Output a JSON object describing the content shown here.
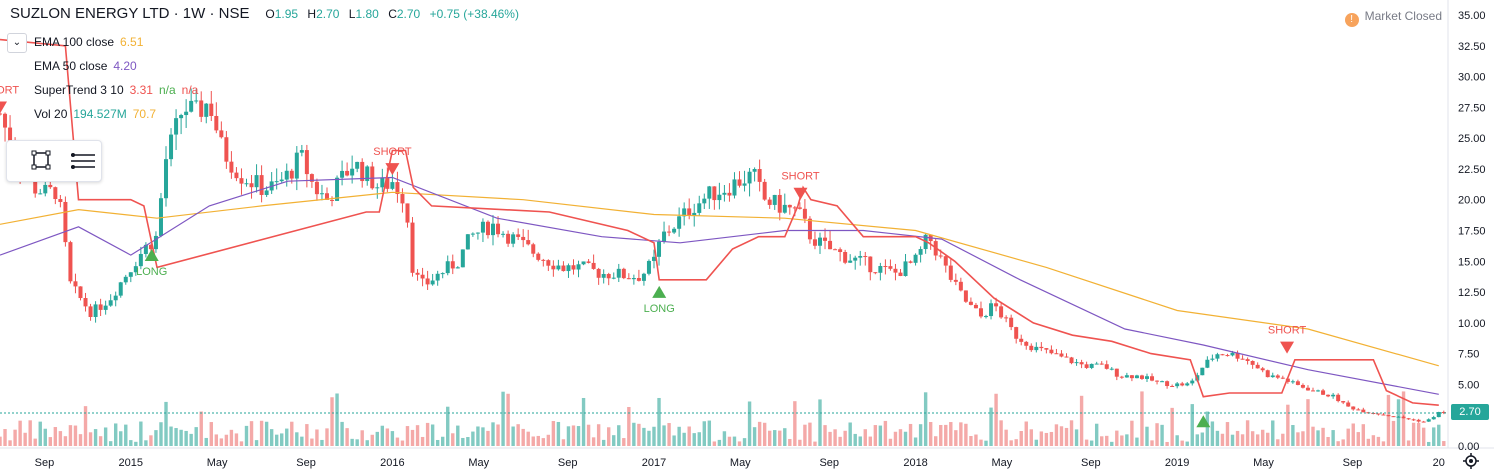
{
  "header": {
    "symbol": "SUZLON ENERGY LTD · 1W · NSE",
    "open_label": "O",
    "open": "1.95",
    "high_label": "H",
    "high": "2.70",
    "low_label": "L",
    "low": "1.80",
    "close_label": "C",
    "close": "2.70",
    "change": "+0.75 (+38.46%)"
  },
  "legend": {
    "collapse_icon": "chevron-down-icon",
    "ema100_label": "EMA 100 close",
    "ema100_value": "6.51",
    "ema50_label": "EMA 50 close",
    "ema50_value": "4.20",
    "supertrend_label": "SuperTrend 3 10",
    "supertrend_value": "3.31",
    "supertrend_na1": "n/a",
    "supertrend_na2": "n/a",
    "volume_label": "Vol 20",
    "volume_value": "194.527M",
    "volume_ma": "70.7"
  },
  "toolbar": {
    "tools": [
      "select-rectangle-icon",
      "hamburger-menu-icon"
    ]
  },
  "market_status": {
    "icon": "info-icon",
    "label": "Market Closed"
  },
  "last_price_tag": "2.70",
  "colors": {
    "up": "#26a69a",
    "down": "#ef5350",
    "ema100": "#f2b134",
    "ema50": "#7e57c2",
    "supertrend_down": "#ef5350",
    "supertrend_up": "#4caf50",
    "signal_long": "#4caf50",
    "signal_short": "#ef5350",
    "vol_up": "#82cac2",
    "vol_down": "#f4a9a8"
  },
  "chart_data": {
    "type": "candlestick",
    "title": "SUZLON ENERGY LTD · 1W · NSE",
    "y_ticks": [
      "0.00",
      "2.50",
      "5.00",
      "7.50",
      "10.00",
      "12.50",
      "15.00",
      "17.50",
      "20.00",
      "22.50",
      "25.00",
      "27.50",
      "30.00",
      "32.50",
      "35.00"
    ],
    "ylim": [
      0,
      35
    ],
    "x_ticks": [
      "Sep",
      "2015",
      "May",
      "Sep",
      "2016",
      "May",
      "Sep",
      "2017",
      "May",
      "Sep",
      "2018",
      "May",
      "Sep",
      "2019",
      "May",
      "Sep",
      "20"
    ],
    "x_tick_times": [
      2014.67,
      2015.0,
      2015.33,
      2015.67,
      2016.0,
      2016.33,
      2016.67,
      2017.0,
      2017.33,
      2017.67,
      2018.0,
      2018.33,
      2018.67,
      2019.0,
      2019.33,
      2019.67,
      2020.0
    ],
    "xlim": [
      2014.5,
      2020.02
    ],
    "price_series": {
      "name": "price",
      "x": [
        2014.5,
        2014.55,
        2014.6,
        2014.63,
        2014.68,
        2014.72,
        2014.77,
        2014.85,
        2014.92,
        2015.0,
        2015.05,
        2015.1,
        2015.13,
        2015.2,
        2015.25,
        2015.3,
        2015.35,
        2015.42,
        2015.5,
        2015.55,
        2015.6,
        2015.65,
        2015.7,
        2015.75,
        2015.8,
        2015.85,
        2015.9,
        2015.95,
        2016.0,
        2016.05,
        2016.08,
        2016.12,
        2016.18,
        2016.25,
        2016.3,
        2016.38,
        2016.45,
        2016.52,
        2016.6,
        2016.65,
        2016.72,
        2016.8,
        2016.85,
        2016.9,
        2016.95,
        2017.0,
        2017.03,
        2017.08,
        2017.15,
        2017.22,
        2017.28,
        2017.32,
        2017.38,
        2017.42,
        2017.48,
        2017.55,
        2017.6,
        2017.63,
        2017.67,
        2017.72,
        2017.78,
        2017.85,
        2017.92,
        2018.0,
        2018.05,
        2018.1,
        2018.15,
        2018.2,
        2018.25,
        2018.3,
        2018.38,
        2018.45,
        2018.52,
        2018.58,
        2018.65,
        2018.72,
        2018.78,
        2018.85,
        2018.92,
        2018.98,
        2019.05,
        2019.1,
        2019.15,
        2019.2,
        2019.25,
        2019.3,
        2019.35,
        2019.4,
        2019.45,
        2019.52,
        2019.6,
        2019.65,
        2019.72,
        2019.8,
        2019.88,
        2019.95,
        2020.0
      ],
      "y": [
        27,
        24,
        22,
        21,
        20.5,
        20.8,
        13,
        10.8,
        12,
        14.5,
        16,
        17,
        23,
        27.5,
        27,
        28,
        24,
        22,
        21,
        21,
        22,
        23.5,
        21,
        20,
        21.5,
        23,
        22,
        21,
        21.5,
        20,
        14,
        13,
        14,
        15,
        17,
        18,
        17,
        16,
        15,
        14.5,
        14.5,
        14,
        14,
        13.8,
        13.8,
        15,
        17,
        18,
        19.5,
        20.5,
        21,
        21.5,
        22,
        20,
        19.5,
        19,
        17,
        16.5,
        16,
        15.5,
        15,
        14.5,
        14,
        15,
        17,
        15,
        13,
        11.5,
        10.5,
        11.5,
        9,
        8,
        7.5,
        7,
        6.5,
        6.5,
        5.7,
        5.7,
        5.2,
        5.0,
        5.0,
        6.5,
        7.5,
        7.5,
        7.2,
        6.5,
        5.7,
        5.5,
        5.0,
        4.5,
        4.0,
        3.2,
        2.8,
        2.5,
        2.2,
        1.95,
        2.7
      ]
    },
    "series": [
      {
        "name": "EMA 100 close",
        "values_x": [
          2014.5,
          2014.8,
          2015.1,
          2015.5,
          2016.0,
          2016.5,
          2017.0,
          2017.5,
          2018.0,
          2018.5,
          2019.0,
          2019.5,
          2020.0
        ],
        "values": [
          18,
          19.2,
          18.5,
          19.5,
          20.6,
          20.0,
          18.8,
          18.5,
          17.5,
          14.5,
          11.0,
          9.5,
          6.51
        ]
      },
      {
        "name": "EMA 50 close",
        "values_x": [
          2014.5,
          2014.8,
          2015.0,
          2015.3,
          2015.6,
          2016.0,
          2016.4,
          2016.8,
          2017.1,
          2017.5,
          2017.8,
          2018.1,
          2018.4,
          2018.8,
          2019.1,
          2019.5,
          2020.0
        ],
        "values": [
          15.5,
          17.8,
          15.5,
          19.5,
          21.5,
          21.8,
          18.5,
          17.0,
          16.5,
          17.5,
          17.5,
          16.8,
          13.5,
          9.5,
          8.2,
          6.2,
          4.2
        ]
      },
      {
        "name": "SuperTrend 3 10",
        "values_x": [
          2014.5,
          2014.75,
          2014.8,
          2015.0,
          2015.05,
          2015.1,
          2015.9,
          2015.95,
          2016.0,
          2016.05,
          2016.08,
          2016.15,
          2016.6,
          2016.9,
          2017.0,
          2017.02,
          2017.1,
          2017.2,
          2017.3,
          2017.4,
          2017.45,
          2017.5,
          2017.55,
          2017.57,
          2017.6,
          2017.7,
          2017.8,
          2017.9,
          2018.0,
          2018.05,
          2018.15,
          2018.3,
          2018.45,
          2018.6,
          2018.75,
          2018.9,
          2019.05,
          2019.1,
          2019.2,
          2019.4,
          2019.45,
          2019.6,
          2019.75,
          2019.8,
          2019.9,
          2020.0
        ],
        "values": [
          33,
          32.5,
          20,
          20,
          19.5,
          14.5,
          19,
          19,
          24,
          24,
          21,
          19.5,
          19,
          17.5,
          16.5,
          13.5,
          13.5,
          13.5,
          16,
          17,
          17,
          17,
          19.5,
          21,
          20,
          19.5,
          17,
          17,
          17,
          16.5,
          15,
          12,
          10,
          9,
          8.5,
          7.5,
          7.0,
          4.0,
          4.3,
          4.3,
          7.0,
          7.0,
          7.0,
          4.5,
          3.5,
          3.31
        ]
      }
    ],
    "volume": {
      "name": "Vol 20",
      "last": "194.527M",
      "ma": "70.7"
    },
    "signals": [
      {
        "label": "SHORT",
        "x": 2014.5,
        "y": 27
      },
      {
        "label": "LONG",
        "x": 2015.08,
        "y": 16
      },
      {
        "label": "SHORT",
        "x": 2016.0,
        "y": 22
      },
      {
        "label": "LONG",
        "x": 2017.02,
        "y": 13
      },
      {
        "label": "SHORT",
        "x": 2017.56,
        "y": 20
      },
      {
        "label": "",
        "x": 2019.1,
        "y": 2.5
      },
      {
        "label": "SHORT",
        "x": 2019.42,
        "y": 7.5
      }
    ],
    "grid": false,
    "legend_position": "top-left"
  }
}
